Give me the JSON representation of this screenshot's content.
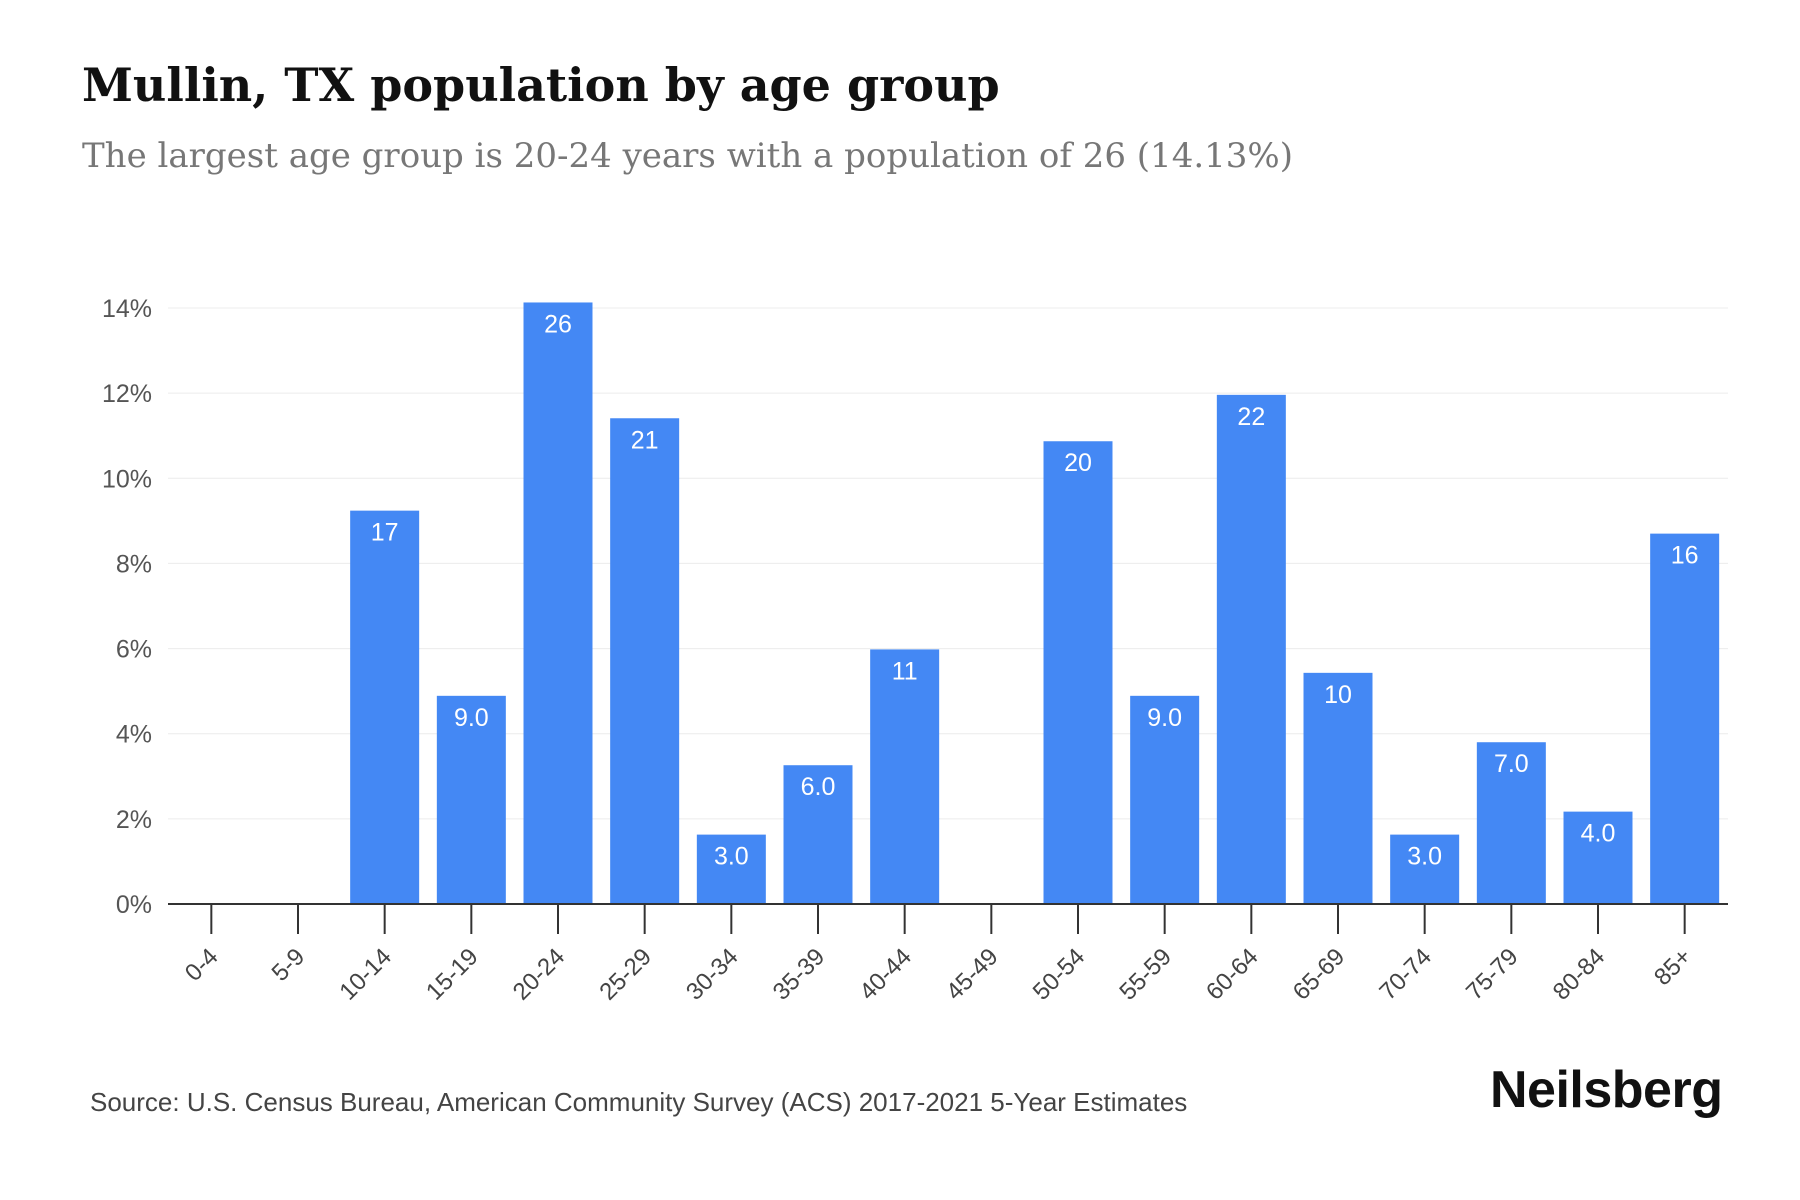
{
  "title": "Mullin, TX population by age group",
  "subtitle": "The largest age group is 20-24 years with a population of 26 (14.13%)",
  "source": "Source: U.S. Census Bureau, American Community Survey (ACS) 2017-2021 5-Year Estimates",
  "brand": "Neilsberg",
  "colors": {
    "bar": "#4488f4",
    "grid": "#ececec",
    "axis": "#333333",
    "label": "#ffffff"
  },
  "chart_data": {
    "type": "bar",
    "title": "Mullin, TX population by age group",
    "subtitle": "The largest age group is 20-24 years with a population of 26 (14.13%)",
    "categories": [
      "0-4",
      "5-9",
      "10-14",
      "15-19",
      "20-24",
      "25-29",
      "30-34",
      "35-39",
      "40-44",
      "45-49",
      "50-54",
      "55-59",
      "60-64",
      "65-69",
      "70-74",
      "75-79",
      "80-84",
      "85+"
    ],
    "values_percent": [
      0,
      0,
      9.24,
      4.89,
      14.13,
      11.41,
      1.63,
      3.26,
      5.98,
      0,
      10.87,
      4.89,
      11.96,
      5.43,
      1.63,
      3.8,
      2.17,
      8.7
    ],
    "data_labels": [
      "",
      "",
      "17",
      "9.0",
      "26",
      "21",
      "3.0",
      "6.0",
      "11",
      "",
      "20",
      "9.0",
      "22",
      "10",
      "3.0",
      "7.0",
      "4.0",
      "16"
    ],
    "yticks": [
      "0%",
      "2%",
      "4%",
      "6%",
      "8%",
      "10%",
      "12%",
      "14%"
    ],
    "ylim": [
      0,
      14
    ],
    "grid": true,
    "xlabel": "",
    "ylabel": ""
  }
}
